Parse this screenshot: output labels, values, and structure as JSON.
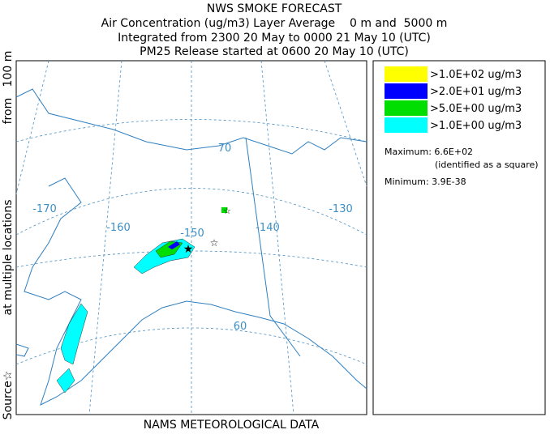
{
  "header": {
    "title": "NWS SMOKE FORECAST",
    "lines": [
      "Air Concentration (ug/m3) Layer Average    0 m and  5000 m",
      "Integrated from 2300 20 May to 0000 21 May 10 (UTC)",
      "PM25 Release started at 0600 20 May 10 (UTC)"
    ]
  },
  "side_label": [
    "Source☆",
    "at multiple locations",
    "from   100 m"
  ],
  "footer": "NAMS METEOROLOGICAL DATA",
  "map": {
    "grid_labels": [
      "-170",
      "-160",
      "-150",
      "-140",
      "-130",
      "70",
      "60"
    ]
  },
  "legend": {
    "items": [
      {
        "label": ">1.0E+02 ug/m3",
        "color": "#ffff00"
      },
      {
        "label": ">2.0E+01 ug/m3",
        "color": "#0000ff"
      },
      {
        "label": ">5.0E+00 ug/m3",
        "color": "#00dd00"
      },
      {
        "label": ">1.0E+00 ug/m3",
        "color": "#00ffff"
      }
    ],
    "maximum": "Maximum: 6.6E+02",
    "maximum_note": "(identified as a square)",
    "minimum": "Minimum: 3.9E-38"
  }
}
